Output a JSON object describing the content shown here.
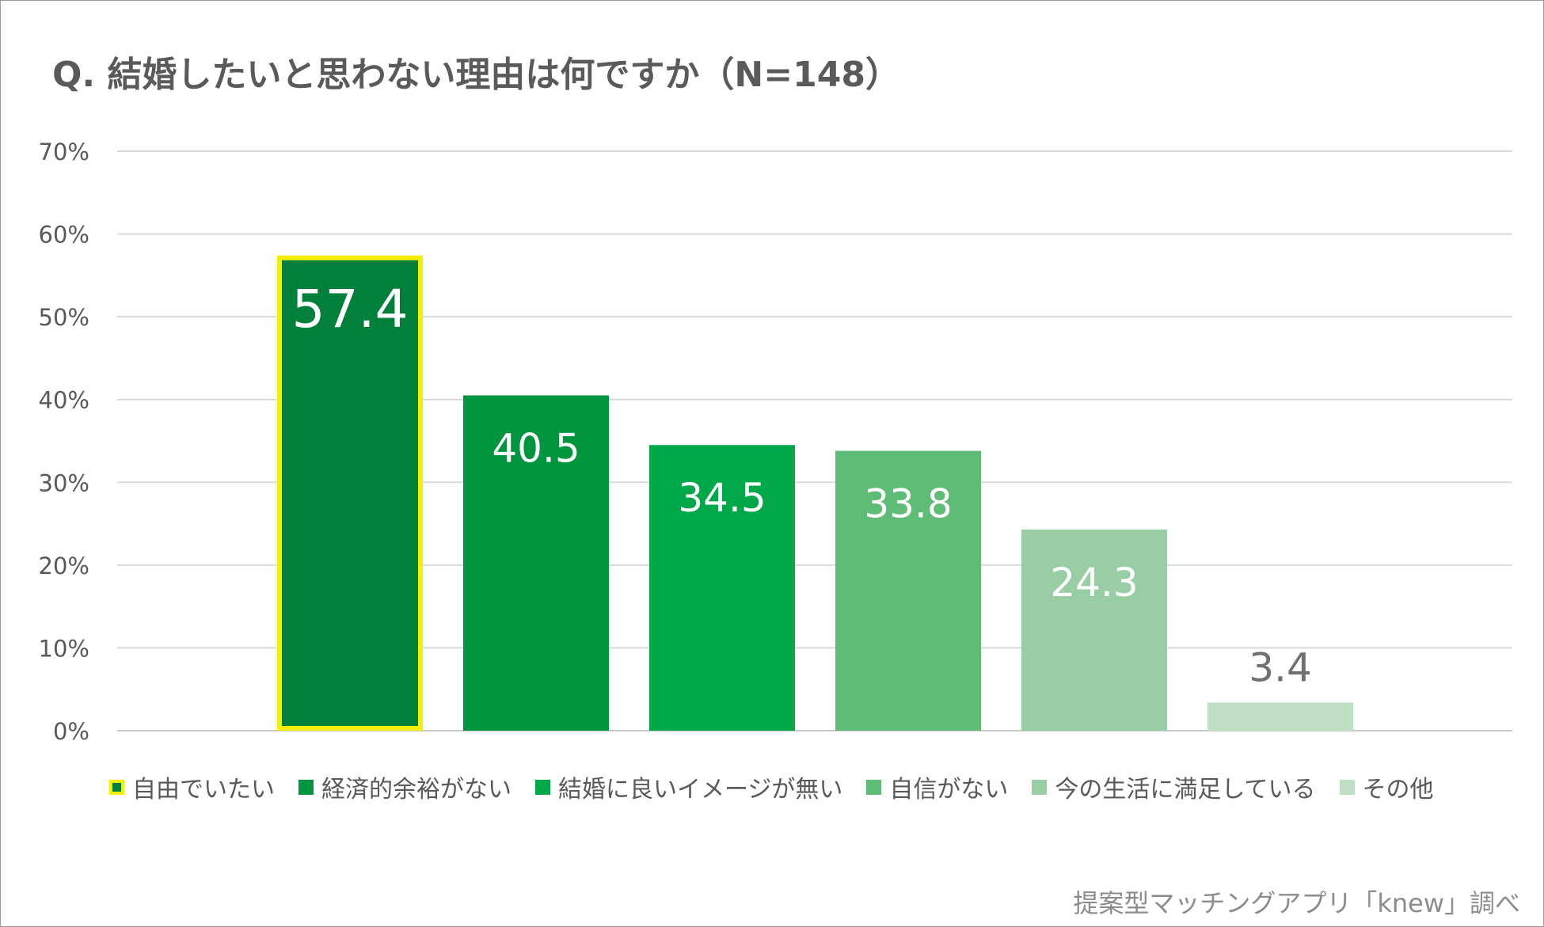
{
  "chart_data": {
    "type": "bar",
    "title": "Q. 結婚したいと思わない理由は何ですか（N=148）",
    "categories": [
      "自由でいたい",
      "経済的余裕がない",
      "結婚に良いイメージが無い",
      "自信がない",
      "今の生活に満足している",
      "その他"
    ],
    "values": [
      57.4,
      40.5,
      34.5,
      33.8,
      24.3,
      3.4
    ],
    "value_labels": [
      "57.4",
      "40.5",
      "34.5",
      "33.8",
      "24.3",
      "3.4"
    ],
    "colors": [
      "#00803a",
      "#00963f",
      "#00a84a",
      "#5fbc77",
      "#99cea4",
      "#bfdfc5"
    ],
    "highlight_color": "#f4f000",
    "highlight_index": 0,
    "yticks": [
      "0%",
      "10%",
      "20%",
      "30%",
      "40%",
      "50%",
      "60%",
      "70%"
    ],
    "ylim": [
      0,
      70
    ],
    "grid": true,
    "legend_position": "bottom",
    "xlabel": "",
    "ylabel": ""
  },
  "source": "提案型マッチングアプリ「knew」調べ"
}
